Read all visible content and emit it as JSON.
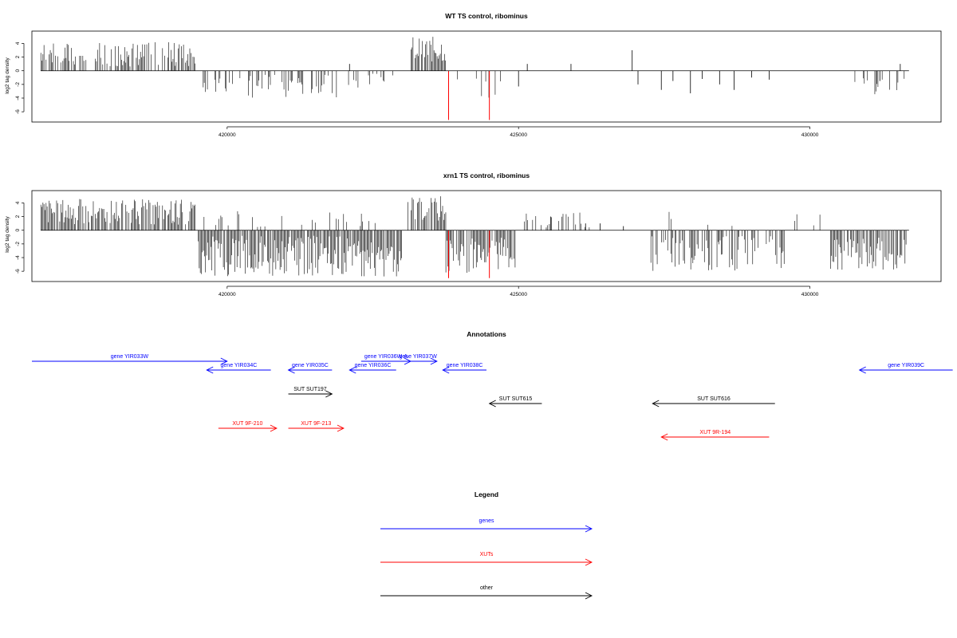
{
  "colors": {
    "gene": "#0000ff",
    "xut": "#ff0000",
    "other": "#000000",
    "marker": "#ff0000",
    "bars": "#000000",
    "frame": "#000000"
  },
  "chart_data": [
    {
      "type": "bar",
      "title": "WT TS control, ribominus",
      "ylabel": "log2 tag density",
      "xlim": [
        416650,
        432250
      ],
      "ylim": [
        -7.5,
        5.8
      ],
      "x_ticks": [
        420000,
        425000,
        430000
      ],
      "x_tick_labels": [
        "420000",
        "425000",
        "430000"
      ],
      "y_ticks": [
        -6,
        -4,
        -2,
        0,
        2,
        4
      ],
      "y_tick_labels": [
        "-6",
        "-4",
        "-2",
        "0",
        "2",
        "4"
      ],
      "marker_lines": [
        423800,
        424500
      ],
      "marker_depth": -7.2,
      "regions": [
        {
          "start": 416800,
          "end": 419450,
          "sign": 1,
          "min": 0.6,
          "max": 4.2,
          "density": 0.55
        },
        {
          "start": 419550,
          "end": 421900,
          "sign": -1,
          "min": 0.6,
          "max": 4.0,
          "density": 0.35
        },
        {
          "start": 421900,
          "end": 422850,
          "sign": -1,
          "min": 0.4,
          "max": 2.5,
          "density": 0.18
        },
        {
          "start": 423150,
          "end": 423750,
          "sign": 1,
          "min": 1.2,
          "max": 5.0,
          "density": 0.8
        },
        {
          "start": 423750,
          "end": 424700,
          "sign": -1,
          "min": 0.8,
          "max": 4.5,
          "density": 0.12
        },
        {
          "start": 430750,
          "end": 431650,
          "sign": -1,
          "min": 0.8,
          "max": 3.5,
          "density": 0.2
        }
      ],
      "spikes": [
        {
          "x": 422100,
          "y": 1.0
        },
        {
          "x": 425150,
          "y": 1.0
        },
        {
          "x": 425900,
          "y": 1.0
        },
        {
          "x": 426950,
          "y": 3.0
        },
        {
          "x": 425000,
          "y": -2.3
        },
        {
          "x": 427050,
          "y": -2.0
        },
        {
          "x": 427450,
          "y": -2.8
        },
        {
          "x": 427650,
          "y": -1.5
        },
        {
          "x": 427950,
          "y": -3.3
        },
        {
          "x": 428150,
          "y": -1.2
        },
        {
          "x": 428450,
          "y": -2.0
        },
        {
          "x": 428700,
          "y": -2.8
        },
        {
          "x": 429000,
          "y": -1.0
        },
        {
          "x": 429300,
          "y": -1.3
        },
        {
          "x": 431550,
          "y": 1.0
        },
        {
          "x": 431200,
          "y": -1.5
        }
      ]
    },
    {
      "type": "bar",
      "title": "xrn1 TS control, ribominus",
      "ylabel": "log2 tag density",
      "xlim": [
        416650,
        432250
      ],
      "ylim": [
        -7.5,
        5.8
      ],
      "x_ticks": [
        420000,
        425000,
        430000
      ],
      "x_tick_labels": [
        "420000",
        "425000",
        "430000"
      ],
      "y_ticks": [
        -6,
        -4,
        -2,
        0,
        2,
        4
      ],
      "y_tick_labels": [
        "-6",
        "-4",
        "-2",
        "0",
        "2",
        "4"
      ],
      "marker_lines": [
        423800,
        424500
      ],
      "marker_depth": -7.0,
      "regions": [
        {
          "start": 416800,
          "end": 419450,
          "sign": 1,
          "min": 0.8,
          "max": 4.6,
          "density": 0.85
        },
        {
          "start": 419500,
          "end": 423000,
          "sign": -1,
          "min": 0.8,
          "max": 6.8,
          "density": 0.9
        },
        {
          "start": 419600,
          "end": 422600,
          "sign": 1,
          "min": 0.4,
          "max": 2.8,
          "density": 0.12
        },
        {
          "start": 423100,
          "end": 423750,
          "sign": 1,
          "min": 1.2,
          "max": 5.0,
          "density": 0.85
        },
        {
          "start": 423750,
          "end": 424950,
          "sign": -1,
          "min": 1.0,
          "max": 6.5,
          "density": 0.8
        },
        {
          "start": 424950,
          "end": 426300,
          "sign": 1,
          "min": 0.4,
          "max": 2.6,
          "density": 0.18
        },
        {
          "start": 427250,
          "end": 429600,
          "sign": -1,
          "min": 0.8,
          "max": 6.0,
          "density": 0.55
        },
        {
          "start": 427400,
          "end": 429300,
          "sign": 1,
          "min": 0.3,
          "max": 3.0,
          "density": 0.06
        },
        {
          "start": 429700,
          "end": 430200,
          "sign": 1,
          "min": 0.5,
          "max": 2.4,
          "density": 0.2
        },
        {
          "start": 430350,
          "end": 431650,
          "sign": -1,
          "min": 1.0,
          "max": 6.0,
          "density": 0.8
        }
      ],
      "spikes": [
        {
          "x": 425550,
          "y": 2.0
        },
        {
          "x": 426150,
          "y": 1.0
        },
        {
          "x": 426800,
          "y": 0.6
        },
        {
          "x": 426400,
          "y": 1.0
        }
      ]
    }
  ],
  "annotations": {
    "title": "Annotations",
    "features": [
      {
        "label": "gene YIR033W",
        "type": "gene",
        "start": 416650,
        "end": 420000,
        "strand": "+",
        "row": 0
      },
      {
        "label": "gene YIR034C",
        "type": "gene",
        "start": 419650,
        "end": 420750,
        "strand": "-",
        "row": 1
      },
      {
        "label": "gene YIR035C",
        "type": "gene",
        "start": 421050,
        "end": 421800,
        "strand": "-",
        "row": 1
      },
      {
        "label": "gene YIR036C",
        "type": "gene",
        "start": 422100,
        "end": 422900,
        "strand": "-",
        "row": 1
      },
      {
        "label": "gene YIR036W-A",
        "type": "gene",
        "start": 422300,
        "end": 423150,
        "strand": "+",
        "row": 0
      },
      {
        "label": "gene YIR037W",
        "type": "gene",
        "start": 422950,
        "end": 423600,
        "strand": "+",
        "row": 0
      },
      {
        "label": "gene YIR038C",
        "type": "gene",
        "start": 423700,
        "end": 424450,
        "strand": "-",
        "row": 1
      },
      {
        "label": "gene YIR039C",
        "type": "gene",
        "start": 430850,
        "end": 432450,
        "strand": "-",
        "row": 1
      },
      {
        "label": "SUT SUT197",
        "type": "other",
        "start": 421050,
        "end": 421800,
        "strand": "+",
        "row": 2
      },
      {
        "label": "SUT SUT615",
        "type": "other",
        "start": 424500,
        "end": 425400,
        "strand": "-",
        "row": 3
      },
      {
        "label": "SUT SUT616",
        "type": "other",
        "start": 427300,
        "end": 429400,
        "strand": "-",
        "row": 3
      },
      {
        "label": "XUT 9F-210",
        "type": "xut",
        "start": 419850,
        "end": 420850,
        "strand": "+",
        "row": 4
      },
      {
        "label": "XUT 9F-213",
        "type": "xut",
        "start": 421050,
        "end": 422000,
        "strand": "+",
        "row": 4
      },
      {
        "label": "XUT 9R-194",
        "type": "xut",
        "start": 427450,
        "end": 429300,
        "strand": "-",
        "row": 5
      }
    ]
  },
  "legend": {
    "title": "Legend",
    "items": [
      {
        "label": "genes",
        "type": "gene"
      },
      {
        "label": "XUTs",
        "type": "xut"
      },
      {
        "label": "other",
        "type": "other"
      }
    ]
  }
}
